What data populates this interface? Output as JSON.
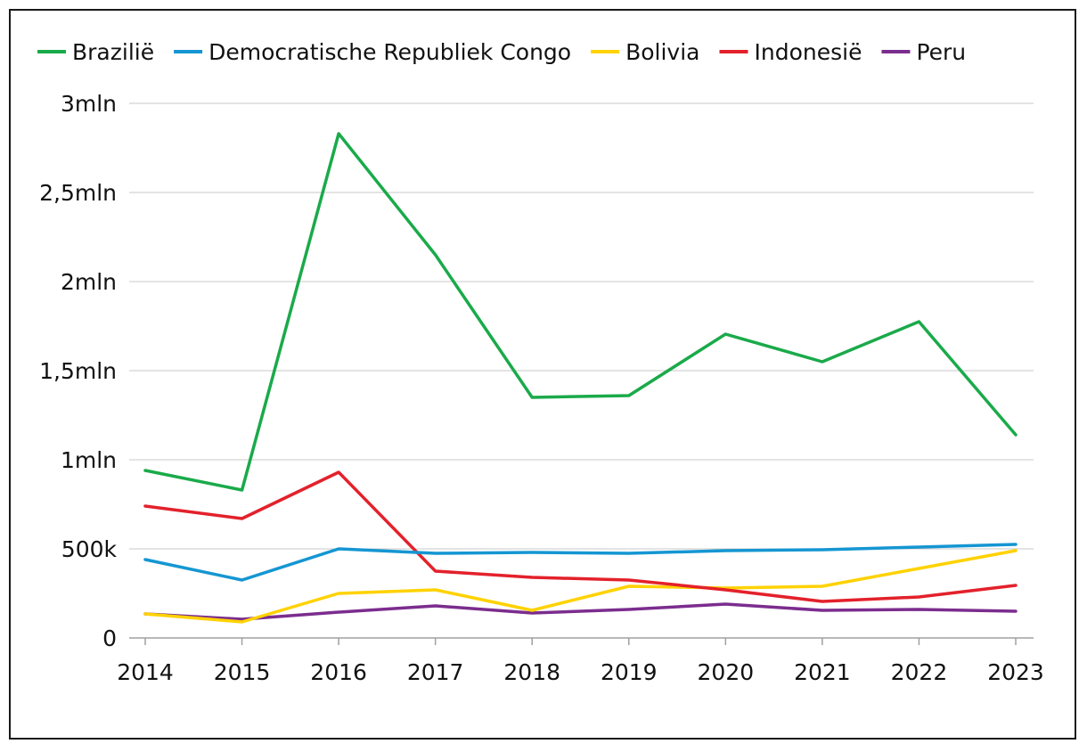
{
  "chart_data": {
    "type": "line",
    "x": [
      "2014",
      "2015",
      "2016",
      "2017",
      "2018",
      "2019",
      "2020",
      "2021",
      "2022",
      "2023"
    ],
    "ylim": [
      0,
      3000000
    ],
    "yticks": [
      {
        "value": 0,
        "label": "0"
      },
      {
        "value": 500000,
        "label": "500k"
      },
      {
        "value": 1000000,
        "label": "1mln"
      },
      {
        "value": 1500000,
        "label": "1,5mln"
      },
      {
        "value": 2000000,
        "label": "2mln"
      },
      {
        "value": 2500000,
        "label": "2,5mln"
      },
      {
        "value": 3000000,
        "label": "3mln"
      }
    ],
    "grid": true,
    "legend_position": "top",
    "series": [
      {
        "name": "Brazilië",
        "color": "#1aaa4a",
        "values": [
          940000,
          830000,
          2830000,
          2150000,
          1350000,
          1360000,
          1705000,
          1550000,
          1775000,
          1140000
        ]
      },
      {
        "name": "Democratische Republiek Congo",
        "color": "#1596d2",
        "values": [
          440000,
          325000,
          500000,
          475000,
          480000,
          475000,
          490000,
          495000,
          510000,
          525000
        ]
      },
      {
        "name": "Bolivia",
        "color": "#ffd200",
        "values": [
          135000,
          90000,
          250000,
          270000,
          155000,
          290000,
          280000,
          290000,
          390000,
          490000
        ]
      },
      {
        "name": "Indonesië",
        "color": "#e3212b",
        "values": [
          740000,
          670000,
          930000,
          375000,
          340000,
          325000,
          270000,
          205000,
          230000,
          295000
        ]
      },
      {
        "name": "Peru",
        "color": "#7b2d8e",
        "values": [
          135000,
          105000,
          145000,
          180000,
          140000,
          160000,
          190000,
          155000,
          160000,
          150000
        ]
      }
    ]
  }
}
